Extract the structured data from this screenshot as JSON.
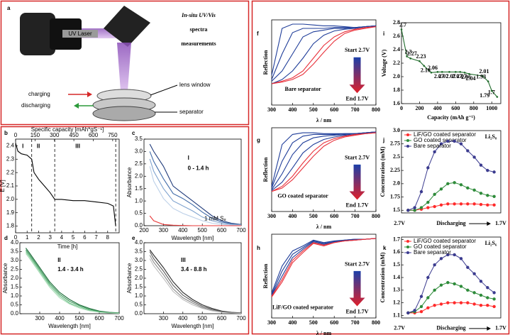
{
  "diagram": {
    "panel": "a",
    "title_lines": [
      "In-situ UV/Vis",
      "spectra",
      "measurements"
    ],
    "laser": "UV Laser",
    "charging": "charging",
    "discharging": "discharging",
    "lens": "lens window",
    "separator": "separator"
  },
  "chart_data": [
    {
      "panel": "b",
      "type": "line",
      "xlabel": "Time [h]",
      "ylabel": "E [V]",
      "x2label": "Specific capacity [mAh*gS⁻¹]",
      "xlim": [
        0,
        9
      ],
      "xticks": [
        0,
        1,
        2,
        3,
        4,
        5,
        6,
        7,
        8
      ],
      "x2lim": [
        0,
        800
      ],
      "x2ticks": [
        0,
        150,
        300,
        450,
        600,
        750
      ],
      "ylim": [
        1.75,
        2.45
      ],
      "yticks": [
        1.8,
        1.9,
        {
          "value": 2,
          "label": "2.0"
        },
        2.1,
        2.2,
        2.3,
        2.4
      ],
      "vlines": [
        1.4,
        3.4,
        8.7
      ],
      "annotations": [
        "I",
        "II",
        "III"
      ],
      "x": [
        0,
        0.2,
        0.5,
        1,
        1.4,
        1.6,
        2,
        2.5,
        3,
        3.4,
        3.6,
        4,
        5,
        6,
        7,
        8,
        8.5,
        8.7
      ],
      "series": [
        {
          "color": "#000000",
          "values": [
            2.42,
            2.36,
            2.34,
            2.33,
            2.3,
            2.2,
            2.15,
            2.1,
            2.05,
            2.0,
            2.0,
            2.0,
            1.99,
            1.99,
            1.98,
            1.97,
            1.95,
            1.8
          ]
        }
      ]
    },
    {
      "panel": "c",
      "type": "line",
      "xlabel": "Wavelength [nm]",
      "ylabel": "Absorbance",
      "xlim": [
        200,
        700
      ],
      "xticks": [
        200,
        300,
        400,
        500,
        600,
        700
      ],
      "ylim": [
        0,
        3.5
      ],
      "yticks": [
        {
          "value": 0,
          "label": "0.0"
        },
        0.5,
        {
          "value": 1,
          "label": "1.0"
        },
        1.5,
        {
          "value": 2,
          "label": "2.0"
        },
        2.5,
        {
          "value": 3,
          "label": "3.0"
        },
        3.5
      ],
      "annotations": [
        "I",
        "0 - 1.4 h",
        "1 mM S₈"
      ],
      "x": [
        230,
        250,
        300,
        350,
        400,
        450,
        500,
        550,
        600,
        650,
        700
      ],
      "series": [
        {
          "color": "#1f3a7a",
          "values": [
            3.3,
            3.0,
            2.4,
            1.6,
            1.3,
            1.0,
            0.7,
            0.4,
            0.2,
            0.1,
            0.05
          ]
        },
        {
          "color": "#3f6aa8",
          "values": [
            3.0,
            2.6,
            1.9,
            1.3,
            1.1,
            0.85,
            0.55,
            0.3,
            0.15,
            0.08,
            0.04
          ]
        },
        {
          "color": "#7fa3cf",
          "values": [
            2.7,
            2.2,
            1.5,
            1.0,
            0.8,
            0.6,
            0.35,
            0.2,
            0.1,
            0.05,
            0.03
          ]
        },
        {
          "color": "#bcd0e8",
          "values": [
            2.4,
            1.8,
            1.1,
            0.7,
            0.5,
            0.35,
            0.2,
            0.1,
            0.05,
            0.03,
            0.02
          ]
        },
        {
          "color": "#e83a3a",
          "values": [
            0.4,
            0.2,
            0.05,
            0.02,
            0.01,
            0,
            0,
            0,
            0,
            0,
            0
          ]
        }
      ]
    },
    {
      "panel": "d",
      "type": "line",
      "xlabel": "Wavelength [nm]",
      "ylabel": "Absorbance",
      "xlim": [
        200,
        700
      ],
      "xticks": [
        300,
        400,
        500,
        600,
        700
      ],
      "ylim": [
        0,
        4
      ],
      "yticks": [
        {
          "value": 0,
          "label": "0.0"
        },
        0.5,
        {
          "value": 1,
          "label": "1.0"
        },
        1.5,
        {
          "value": 2,
          "label": "2.0"
        },
        2.5,
        {
          "value": 3,
          "label": "3.0"
        },
        3.5,
        {
          "value": 4,
          "label": "4.0"
        }
      ],
      "annotations": [
        "II",
        "1.4 - 3.4 h"
      ],
      "x": [
        230,
        250,
        300,
        350,
        400,
        450,
        500,
        550,
        600,
        650,
        700
      ],
      "series": [
        {
          "color": "#1d6b3a",
          "values": [
            3.7,
            3.4,
            2.6,
            1.8,
            1.2,
            0.8,
            0.5,
            0.3,
            0.15,
            0.08,
            0.05
          ]
        },
        {
          "color": "#3c9a5a",
          "values": [
            3.6,
            3.3,
            2.5,
            1.7,
            1.1,
            0.7,
            0.45,
            0.25,
            0.12,
            0.06,
            0.04
          ]
        },
        {
          "color": "#6cbf86",
          "values": [
            3.5,
            3.2,
            2.4,
            1.6,
            1.0,
            0.6,
            0.38,
            0.2,
            0.1,
            0.05,
            0.03
          ]
        },
        {
          "color": "#a5dbb4",
          "values": [
            3.4,
            3.1,
            2.3,
            1.5,
            0.9,
            0.55,
            0.32,
            0.17,
            0.08,
            0.04,
            0.02
          ]
        }
      ]
    },
    {
      "panel": "e",
      "type": "line",
      "xlabel": "Wavelength [nm]",
      "ylabel": "Absorbance",
      "xlim": [
        200,
        700
      ],
      "xticks": [
        300,
        400,
        500,
        600,
        700
      ],
      "ylim": [
        0,
        4
      ],
      "yticks": [
        {
          "value": 0,
          "label": "0.0"
        },
        0.5,
        {
          "value": 1,
          "label": "1.0"
        },
        1.5,
        {
          "value": 2,
          "label": "2.0"
        },
        2.5,
        {
          "value": 3,
          "label": "3.0"
        },
        3.5,
        {
          "value": 4,
          "label": "4.0"
        }
      ],
      "annotations": [
        "III",
        "3.4 - 8.8 h"
      ],
      "x": [
        230,
        250,
        300,
        350,
        400,
        450,
        500,
        550,
        600,
        650,
        700
      ],
      "series": [
        {
          "color": "#2b2b2b",
          "values": [
            3.6,
            3.3,
            2.6,
            1.8,
            1.2,
            0.8,
            0.5,
            0.3,
            0.15,
            0.08,
            0.05
          ]
        },
        {
          "color": "#5a5a5a",
          "values": [
            3.5,
            3.1,
            2.4,
            1.6,
            1.05,
            0.7,
            0.42,
            0.25,
            0.12,
            0.06,
            0.04
          ]
        },
        {
          "color": "#8a8a8a",
          "values": [
            3.3,
            2.9,
            2.2,
            1.4,
            0.9,
            0.6,
            0.35,
            0.2,
            0.1,
            0.05,
            0.03
          ]
        },
        {
          "color": "#bdbdbd",
          "values": [
            3.1,
            2.7,
            2.0,
            1.25,
            0.8,
            0.5,
            0.3,
            0.16,
            0.08,
            0.04,
            0.02
          ]
        }
      ]
    },
    {
      "panel": "f",
      "type": "line",
      "xlabel": "λ / nm",
      "ylabel": "Reflection",
      "xlim": [
        300,
        800
      ],
      "xticks": [
        300,
        400,
        500,
        600,
        700,
        800
      ],
      "ylim": [
        0,
        1
      ],
      "annotations": [
        "Start 2.7V",
        "End 1.7V",
        "Bare separator"
      ],
      "x": [
        300,
        350,
        400,
        450,
        500,
        550,
        600,
        650,
        700,
        750,
        800
      ],
      "series": [
        {
          "color": "#1f3d99",
          "values": [
            0.35,
            0.9,
            0.95,
            0.95,
            0.94,
            0.93,
            0.93,
            0.92,
            0.91,
            0.92,
            0.93
          ]
        },
        {
          "color": "#1f3d99",
          "values": [
            0.3,
            0.6,
            0.85,
            0.9,
            0.9,
            0.9,
            0.91,
            0.91,
            0.91,
            0.92,
            0.93
          ]
        },
        {
          "color": "#1f3d99",
          "values": [
            0.28,
            0.4,
            0.6,
            0.8,
            0.86,
            0.88,
            0.9,
            0.9,
            0.91,
            0.92,
            0.93
          ]
        },
        {
          "color": "#1f3d99",
          "values": [
            0.25,
            0.3,
            0.4,
            0.55,
            0.72,
            0.82,
            0.87,
            0.89,
            0.9,
            0.92,
            0.93
          ]
        },
        {
          "color": "#e8303a",
          "values": [
            0.25,
            0.28,
            0.32,
            0.4,
            0.55,
            0.7,
            0.8,
            0.86,
            0.89,
            0.91,
            0.92
          ]
        },
        {
          "color": "#e8303a",
          "values": [
            0.25,
            0.27,
            0.3,
            0.36,
            0.48,
            0.62,
            0.75,
            0.84,
            0.88,
            0.9,
            0.92
          ]
        }
      ]
    },
    {
      "panel": "g",
      "type": "line",
      "xlabel": "λ / nm",
      "ylabel": "Reflection",
      "xlim": [
        300,
        800
      ],
      "xticks": [
        300,
        400,
        500,
        600,
        700,
        800
      ],
      "ylim": [
        0,
        1
      ],
      "annotations": [
        "Start 2.7V",
        "End 1.7V",
        "GO coated separator"
      ],
      "x": [
        300,
        350,
        400,
        450,
        500,
        550,
        600,
        650,
        700,
        750,
        800
      ],
      "series": [
        {
          "color": "#1f3d99",
          "values": [
            0.3,
            0.8,
            0.92,
            0.94,
            0.94,
            0.93,
            0.93,
            0.93,
            0.93,
            0.94,
            0.95
          ]
        },
        {
          "color": "#1f3d99",
          "values": [
            0.28,
            0.6,
            0.82,
            0.9,
            0.92,
            0.92,
            0.92,
            0.93,
            0.93,
            0.94,
            0.95
          ]
        },
        {
          "color": "#1f3d99",
          "values": [
            0.26,
            0.45,
            0.68,
            0.82,
            0.88,
            0.9,
            0.91,
            0.92,
            0.93,
            0.94,
            0.95
          ]
        },
        {
          "color": "#1f3d99",
          "values": [
            0.25,
            0.35,
            0.52,
            0.7,
            0.8,
            0.86,
            0.89,
            0.91,
            0.92,
            0.94,
            0.95
          ]
        },
        {
          "color": "#e8303a",
          "values": [
            0.24,
            0.3,
            0.42,
            0.58,
            0.72,
            0.82,
            0.87,
            0.9,
            0.92,
            0.93,
            0.94
          ]
        },
        {
          "color": "#e8303a",
          "values": [
            0.24,
            0.28,
            0.38,
            0.52,
            0.66,
            0.78,
            0.85,
            0.89,
            0.91,
            0.93,
            0.94
          ]
        }
      ]
    },
    {
      "panel": "h",
      "type": "line",
      "xlabel": "λ / nm",
      "ylabel": "Reflection",
      "xlim": [
        300,
        800
      ],
      "xticks": [
        300,
        400,
        500,
        600,
        700,
        800
      ],
      "ylim": [
        0,
        1
      ],
      "annotations": [
        "Start 2.7V",
        "End 1.7V",
        "LiF/GO coated separator"
      ],
      "x": [
        300,
        350,
        400,
        450,
        500,
        550,
        600,
        650,
        700,
        750,
        800
      ],
      "series": [
        {
          "color": "#1f3d99",
          "values": [
            0.3,
            0.62,
            0.8,
            0.86,
            0.93,
            0.9,
            0.92,
            0.93,
            0.94,
            0.94,
            0.95
          ]
        },
        {
          "color": "#1f3d99",
          "values": [
            0.28,
            0.56,
            0.76,
            0.84,
            0.92,
            0.89,
            0.91,
            0.93,
            0.94,
            0.94,
            0.95
          ]
        },
        {
          "color": "#1f3d99",
          "values": [
            0.27,
            0.5,
            0.72,
            0.82,
            0.91,
            0.88,
            0.91,
            0.92,
            0.93,
            0.94,
            0.95
          ]
        },
        {
          "color": "#e8303a",
          "values": [
            0.26,
            0.46,
            0.69,
            0.8,
            0.9,
            0.87,
            0.9,
            0.92,
            0.93,
            0.94,
            0.95
          ]
        },
        {
          "color": "#e8303a",
          "values": [
            0.25,
            0.43,
            0.66,
            0.78,
            0.89,
            0.86,
            0.9,
            0.92,
            0.93,
            0.94,
            0.95
          ]
        }
      ]
    },
    {
      "panel": "i",
      "type": "line",
      "xlabel": "Capacity (mAh g⁻¹)",
      "ylabel": "Voltage (V)",
      "xlim": [
        0,
        1100
      ],
      "xticks": [
        0,
        200,
        400,
        600,
        800,
        1000
      ],
      "ylim": [
        1.6,
        2.8
      ],
      "yticks": [
        1.6,
        1.8,
        {
          "value": 2,
          "label": "2.0"
        },
        2.2,
        2.4,
        2.6,
        2.8
      ],
      "point_labels": true,
      "x": [
        0,
        60,
        100,
        200,
        250,
        330,
        400,
        450,
        530,
        600,
        650,
        700,
        750,
        900,
        960,
        1000,
        1060
      ],
      "series": [
        {
          "color": "#1f6b2a",
          "values": [
            2.7,
            2.3,
            2.27,
            2.23,
            2.16,
            2.06,
            2.07,
            2.07,
            2.07,
            2.07,
            2.07,
            2.06,
            2.04,
            2.01,
            1.93,
            1.79,
            1.7
          ]
        }
      ]
    },
    {
      "panel": "j",
      "type": "line",
      "ylabel": "Concentration (mM)",
      "markers": true,
      "legend": "upper left",
      "xlim": [
        0,
        15
      ],
      "ylim": [
        1.45,
        3.0
      ],
      "yticks": [
        1.5,
        1.75,
        {
          "value": 2,
          "label": "2.0"
        },
        2.25,
        2.5,
        2.75,
        {
          "value": 3,
          "label": "3.0"
        }
      ],
      "annotations": [
        "Li₂S₈",
        "2.7V",
        "Discharging",
        "1.7V"
      ],
      "x": [
        1,
        2,
        3,
        4,
        5,
        6,
        7,
        8,
        9,
        10,
        11,
        12,
        13,
        14
      ],
      "series": [
        {
          "name": "LiF/GO coated separator",
          "color": "#ff2a2a",
          "values": [
            1.5,
            1.5,
            1.52,
            1.55,
            1.57,
            1.6,
            1.62,
            1.62,
            1.62,
            1.62,
            1.62,
            1.61,
            1.6,
            1.6
          ]
        },
        {
          "name": "GO coated separator",
          "color": "#2e8b3a",
          "values": [
            1.5,
            1.5,
            1.55,
            1.65,
            1.8,
            1.9,
            2.0,
            2.02,
            1.98,
            1.92,
            1.88,
            1.82,
            1.78,
            1.76
          ]
        },
        {
          "name": "Bare separator",
          "color": "#3b3b8f",
          "values": [
            1.5,
            1.55,
            1.85,
            2.3,
            2.6,
            2.75,
            2.8,
            2.8,
            2.75,
            2.62,
            2.5,
            2.35,
            2.25,
            2.22
          ]
        }
      ]
    },
    {
      "panel": "k",
      "type": "line",
      "ylabel": "Concentration (mM)",
      "markers": true,
      "legend": "upper left",
      "xlim": [
        0,
        15
      ],
      "ylim": [
        1.08,
        1.72
      ],
      "yticks": [
        1.1,
        1.2,
        1.3,
        1.4,
        1.5,
        1.6,
        1.7
      ],
      "annotations": [
        "Li₂S₆",
        "2.7V",
        "Discharging",
        "1.7V"
      ],
      "x": [
        1,
        2,
        3,
        4,
        5,
        6,
        7,
        8,
        9,
        10,
        11,
        12,
        13,
        14
      ],
      "series": [
        {
          "name": "LiF/GO coated separator",
          "color": "#ff2a2a",
          "values": [
            1.12,
            1.12,
            1.13,
            1.16,
            1.18,
            1.19,
            1.2,
            1.2,
            1.2,
            1.2,
            1.19,
            1.18,
            1.18,
            1.17
          ]
        },
        {
          "name": "GO coated separator",
          "color": "#2e8b3a",
          "values": [
            1.12,
            1.13,
            1.17,
            1.24,
            1.3,
            1.34,
            1.36,
            1.35,
            1.33,
            1.3,
            1.28,
            1.26,
            1.24,
            1.23
          ]
        },
        {
          "name": "Bare separator",
          "color": "#3b3b8f",
          "values": [
            1.12,
            1.14,
            1.25,
            1.4,
            1.5,
            1.55,
            1.58,
            1.58,
            1.55,
            1.48,
            1.43,
            1.37,
            1.32,
            1.28
          ]
        }
      ]
    }
  ]
}
